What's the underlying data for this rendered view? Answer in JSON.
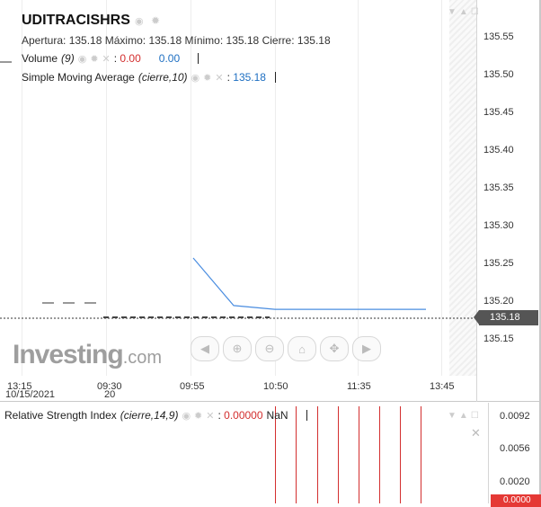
{
  "header": {
    "symbol": "UDITRACISHRS",
    "ohlc": {
      "open_label": "Apertura:",
      "open": "135.18",
      "high_label": "Máximo:",
      "high": "135.18",
      "low_label": "Mínimo:",
      "low": "135.18",
      "close_label": "Cierre:",
      "close": "135.18"
    }
  },
  "legend": {
    "volume": {
      "name": "Volume",
      "param": "(9)",
      "value1": "0.00",
      "value2": "0.00"
    },
    "sma": {
      "name": "Simple Moving Average",
      "param": "(cierre,10)",
      "value": "135.18"
    }
  },
  "y_axis": [
    "135.55",
    "135.50",
    "135.45",
    "135.40",
    "135.35",
    "135.30",
    "135.25",
    "135.20",
    "135.15"
  ],
  "current_price": "135.18",
  "x_axis": [
    {
      "time": "13:15",
      "date": "10/15/2021"
    },
    {
      "time": "09:30",
      "date": "20"
    },
    {
      "time": "09:55",
      "date": ""
    },
    {
      "time": "10:50",
      "date": ""
    },
    {
      "time": "11:35",
      "date": ""
    },
    {
      "time": "13:45",
      "date": ""
    }
  ],
  "logo": {
    "brand": "Investing",
    "suffix": ".com"
  },
  "rsi": {
    "name": "Relative Strength Index",
    "param": "(cierre,14,9)",
    "value": "0.00000",
    "value2": "NaN",
    "y_axis": [
      "0.0092",
      "0.0056",
      "0.0020"
    ],
    "current": "0.0000"
  },
  "colors": {
    "up": "#1e6fc2",
    "down": "#d32f2f",
    "axis_tag": "#555555",
    "rsi_tag": "#e53935"
  },
  "icons": [
    "eye-icon",
    "gear-icon",
    "close-icon",
    "chevron-down-icon",
    "bell-icon",
    "maximize-icon"
  ],
  "chart_data": {
    "type": "line",
    "series": [
      {
        "name": "Simple Moving Average",
        "x": [
          "09:55",
          "10:20",
          "10:50",
          "13:45"
        ],
        "y": [
          135.25,
          135.187,
          135.182,
          135.182
        ]
      }
    ],
    "ylim": [
      135.12,
      135.58
    ]
  }
}
